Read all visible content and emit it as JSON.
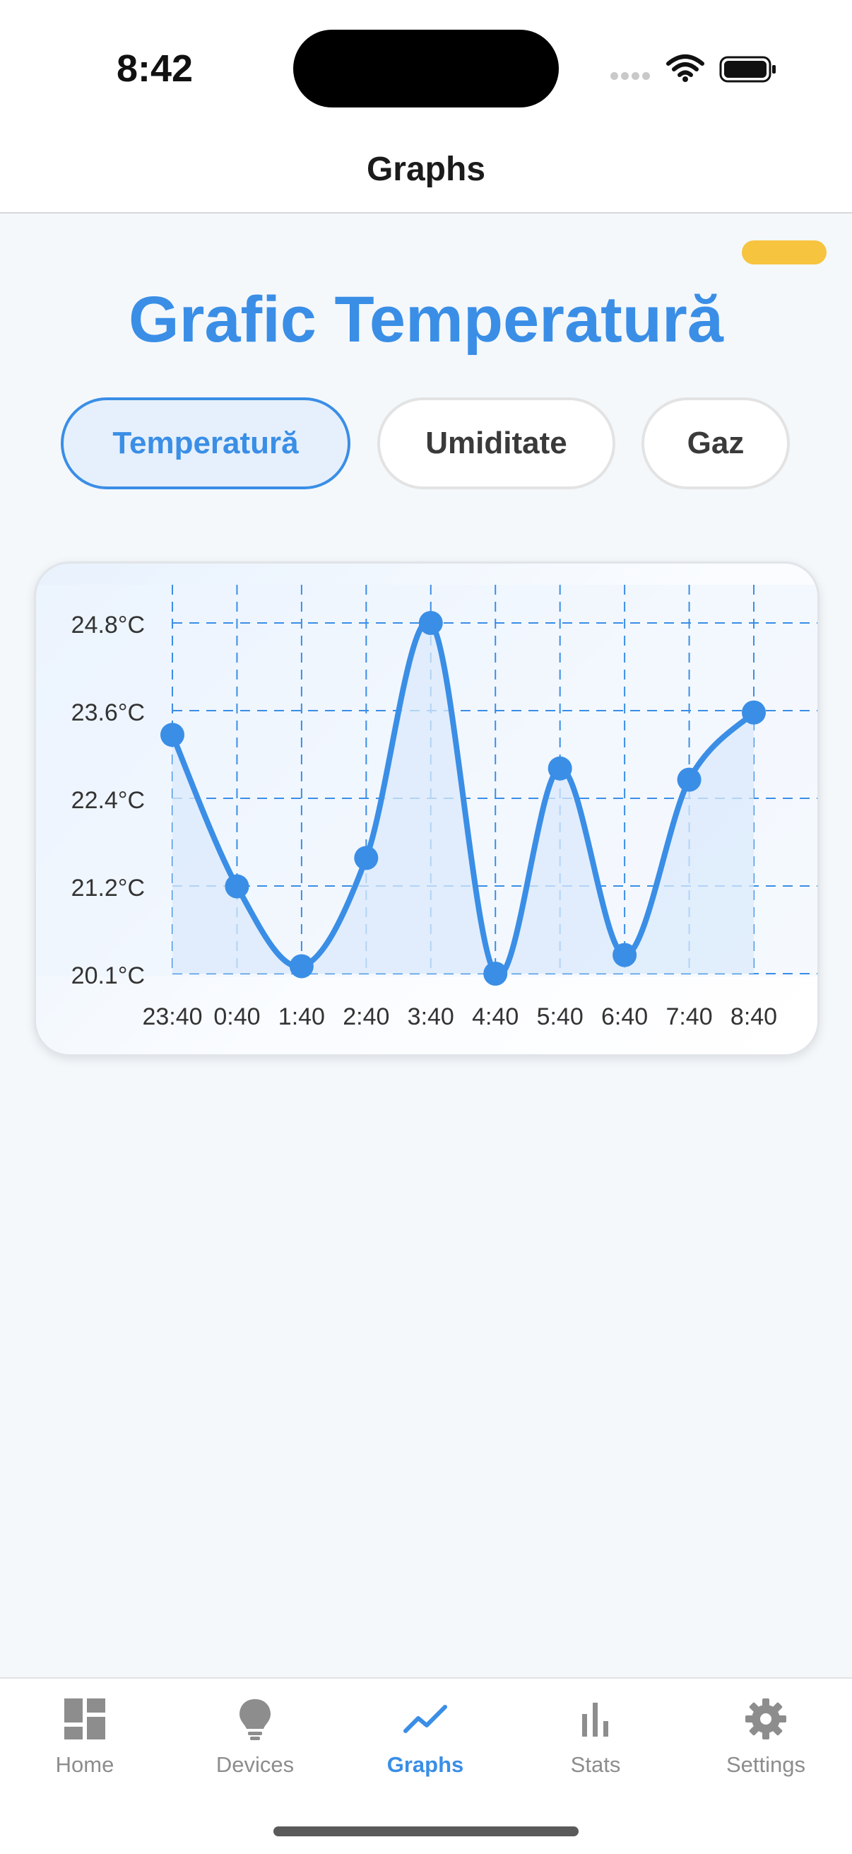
{
  "status_bar": {
    "time": "8:42"
  },
  "header": {
    "title": "Graphs"
  },
  "page": {
    "title": "Grafic Temperatură"
  },
  "filters": [
    {
      "label": "Temperatură",
      "active": true
    },
    {
      "label": "Umiditate",
      "active": false
    },
    {
      "label": "Gaz",
      "active": false
    }
  ],
  "chart_data": {
    "type": "line",
    "x": [
      "23:40",
      "0:40",
      "1:40",
      "2:40",
      "3:40",
      "4:40",
      "5:40",
      "6:40",
      "7:40",
      "8:40"
    ],
    "series": [
      {
        "values": [
          23.3,
          21.27,
          20.2,
          21.65,
          24.8,
          20.1,
          22.85,
          20.35,
          22.7,
          23.6
        ]
      }
    ],
    "y_ticks": [
      "24.8°C",
      "23.6°C",
      "22.4°C",
      "21.2°C",
      "20.1°C"
    ],
    "ylim": [
      20.1,
      24.8
    ],
    "grid": true,
    "colors": {
      "line": "#3a8ee6",
      "grid": "#3a8ee6",
      "fill": "#dbe9fb"
    }
  },
  "tabbar": {
    "items": [
      {
        "label": "Home",
        "icon": "dashboard-icon",
        "active": false
      },
      {
        "label": "Devices",
        "icon": "lightbulb-icon",
        "active": false
      },
      {
        "label": "Graphs",
        "icon": "trend-line-icon",
        "active": true
      },
      {
        "label": "Stats",
        "icon": "bar-chart-icon",
        "active": false
      },
      {
        "label": "Settings",
        "icon": "gear-icon",
        "active": false
      }
    ]
  },
  "colors": {
    "accent": "#3a8ee6",
    "badge": "#f7c43f"
  }
}
